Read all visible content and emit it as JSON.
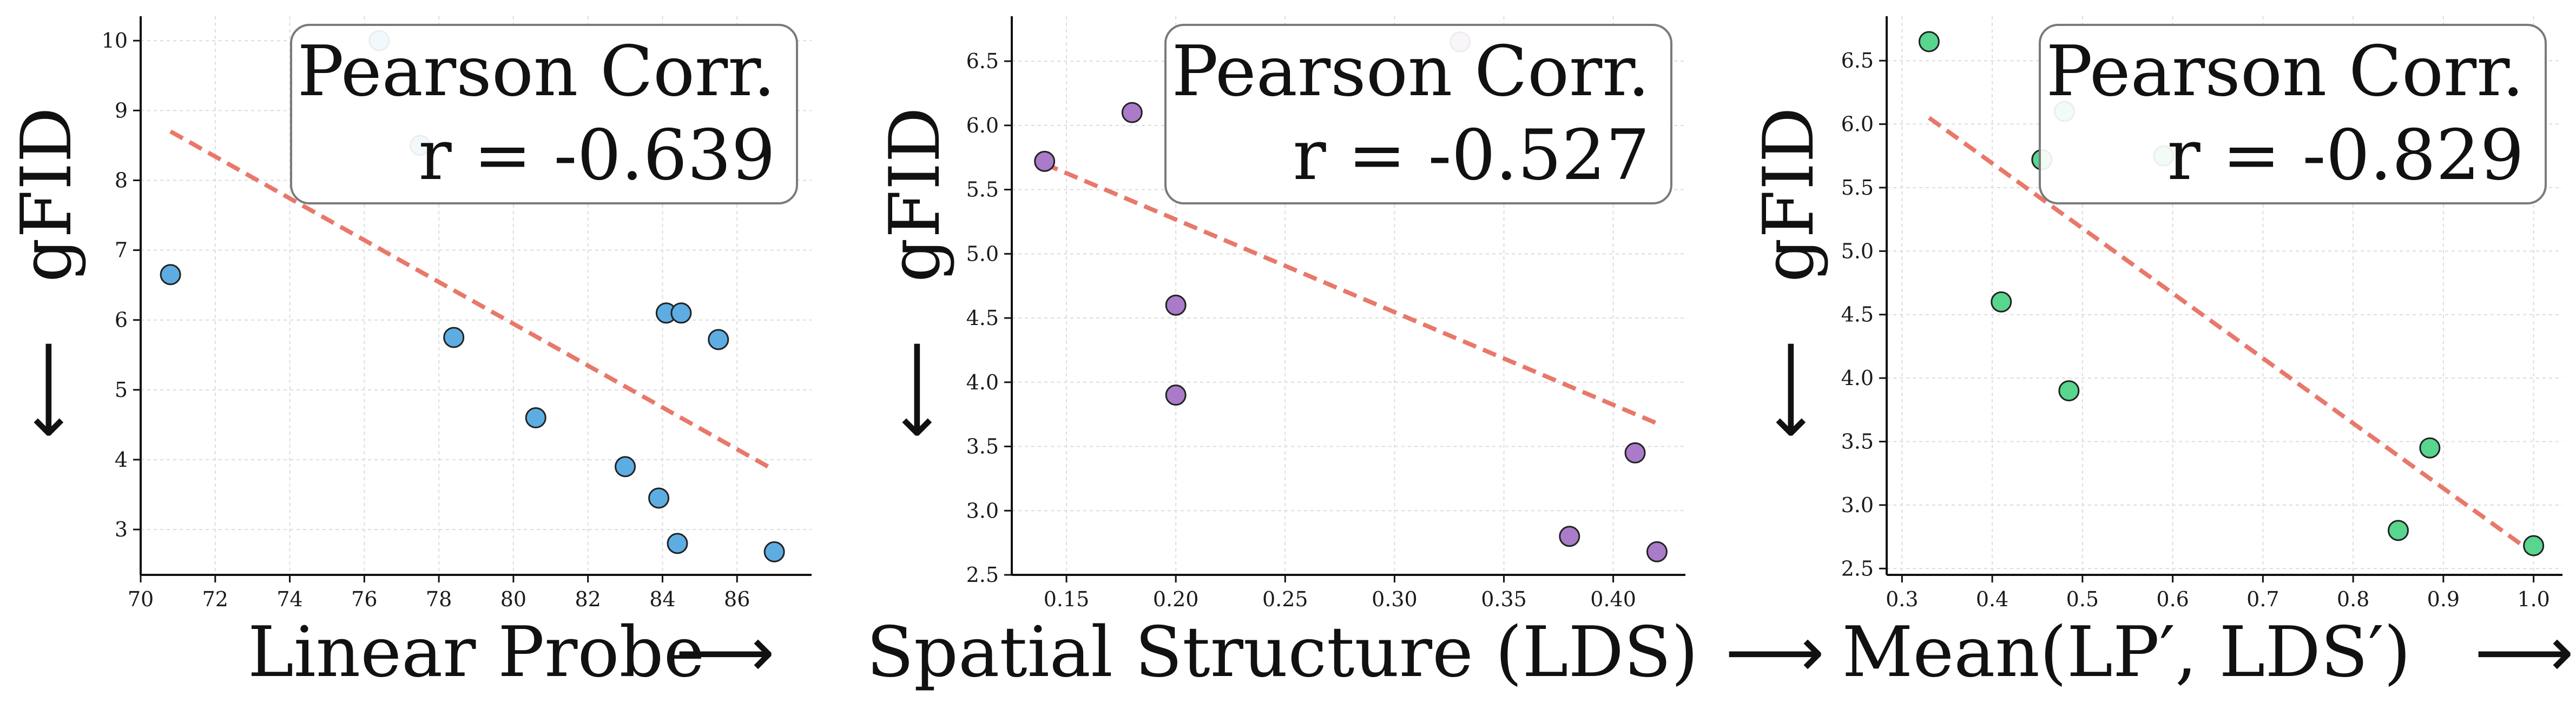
{
  "chart_data": [
    {
      "type": "scatter",
      "xlabel": "Linear Probe",
      "ylabel": "gFID",
      "x_arrow": "⟶",
      "y_arrow": "⟵",
      "xlim": [
        70,
        88
      ],
      "ylim": [
        2.35,
        10.35
      ],
      "xticks": [
        70,
        72,
        74,
        76,
        78,
        80,
        82,
        84,
        86
      ],
      "yticks": [
        3,
        4,
        5,
        6,
        7,
        8,
        9,
        10
      ],
      "grid": true,
      "point_color": "#5DADE2",
      "x": [
        70.8,
        76.4,
        77.5,
        78.4,
        80.6,
        83.0,
        83.9,
        84.1,
        84.4,
        84.5,
        85.5,
        87.0
      ],
      "y": [
        6.65,
        10.0,
        8.5,
        5.75,
        4.6,
        3.9,
        3.45,
        6.1,
        2.8,
        6.1,
        5.72,
        2.68
      ],
      "trend_line": {
        "x": [
          70.8,
          87.0
        ],
        "y": [
          8.7,
          3.85
        ],
        "color": "#E8786A"
      },
      "annotation": {
        "title": "Pearson Corr.",
        "value": "r = -0.639"
      }
    },
    {
      "type": "scatter",
      "xlabel": "Spatial Structure (LDS)",
      "ylabel": "gFID",
      "x_arrow": "⟶",
      "y_arrow": "⟵",
      "xlim": [
        0.125,
        0.433
      ],
      "ylim": [
        2.5,
        6.85
      ],
      "xticks": [
        0.15,
        0.2,
        0.25,
        0.3,
        0.35,
        0.4
      ],
      "xtick_labels": [
        "0.15",
        "0.20",
        "0.25",
        "0.30",
        "0.35",
        "0.40"
      ],
      "yticks": [
        2.5,
        3.0,
        3.5,
        4.0,
        4.5,
        5.0,
        5.5,
        6.0,
        6.5
      ],
      "ytick_labels": [
        "2.5",
        "3.0",
        "3.5",
        "4.0",
        "4.5",
        "5.0",
        "5.5",
        "6.0",
        "6.5"
      ],
      "grid": true,
      "point_color": "#A97BC9",
      "x": [
        0.14,
        0.18,
        0.2,
        0.2,
        0.33,
        0.38,
        0.41,
        0.42
      ],
      "y": [
        5.72,
        6.1,
        4.6,
        3.9,
        6.65,
        2.8,
        3.45,
        2.68
      ],
      "trend_line": {
        "x": [
          0.14,
          0.42
        ],
        "y": [
          5.7,
          3.68
        ],
        "color": "#E8786A"
      },
      "annotation": {
        "title": "Pearson Corr.",
        "value": "r = -0.527"
      }
    },
    {
      "type": "scatter",
      "xlabel": "Mean(LP′, LDS′)",
      "ylabel": "gFID",
      "x_arrow": "⟶",
      "y_arrow": "⟵",
      "xlim": [
        0.283,
        1.032
      ],
      "ylim": [
        2.45,
        6.85
      ],
      "xticks": [
        0.3,
        0.4,
        0.5,
        0.6,
        0.7,
        0.8,
        0.9,
        1.0
      ],
      "xtick_labels": [
        "0.3",
        "0.4",
        "0.5",
        "0.6",
        "0.7",
        "0.8",
        "0.9",
        "1.0"
      ],
      "yticks": [
        2.5,
        3.0,
        3.5,
        4.0,
        4.5,
        5.0,
        5.5,
        6.0,
        6.5
      ],
      "ytick_labels": [
        "2.5",
        "3.0",
        "3.5",
        "4.0",
        "4.5",
        "5.0",
        "5.5",
        "6.0",
        "6.5"
      ],
      "grid": true,
      "point_color": "#58D68D",
      "x": [
        0.33,
        0.41,
        0.455,
        0.48,
        0.485,
        0.59,
        0.85,
        0.885,
        1.0
      ],
      "y": [
        6.65,
        4.6,
        5.72,
        6.1,
        3.9,
        5.75,
        2.8,
        3.45,
        2.68
      ],
      "trend_line": {
        "x": [
          0.33,
          1.0
        ],
        "y": [
          6.05,
          2.62
        ],
        "color": "#E8786A"
      },
      "annotation": {
        "title": "Pearson Corr.",
        "value": "r = -0.829"
      }
    }
  ]
}
